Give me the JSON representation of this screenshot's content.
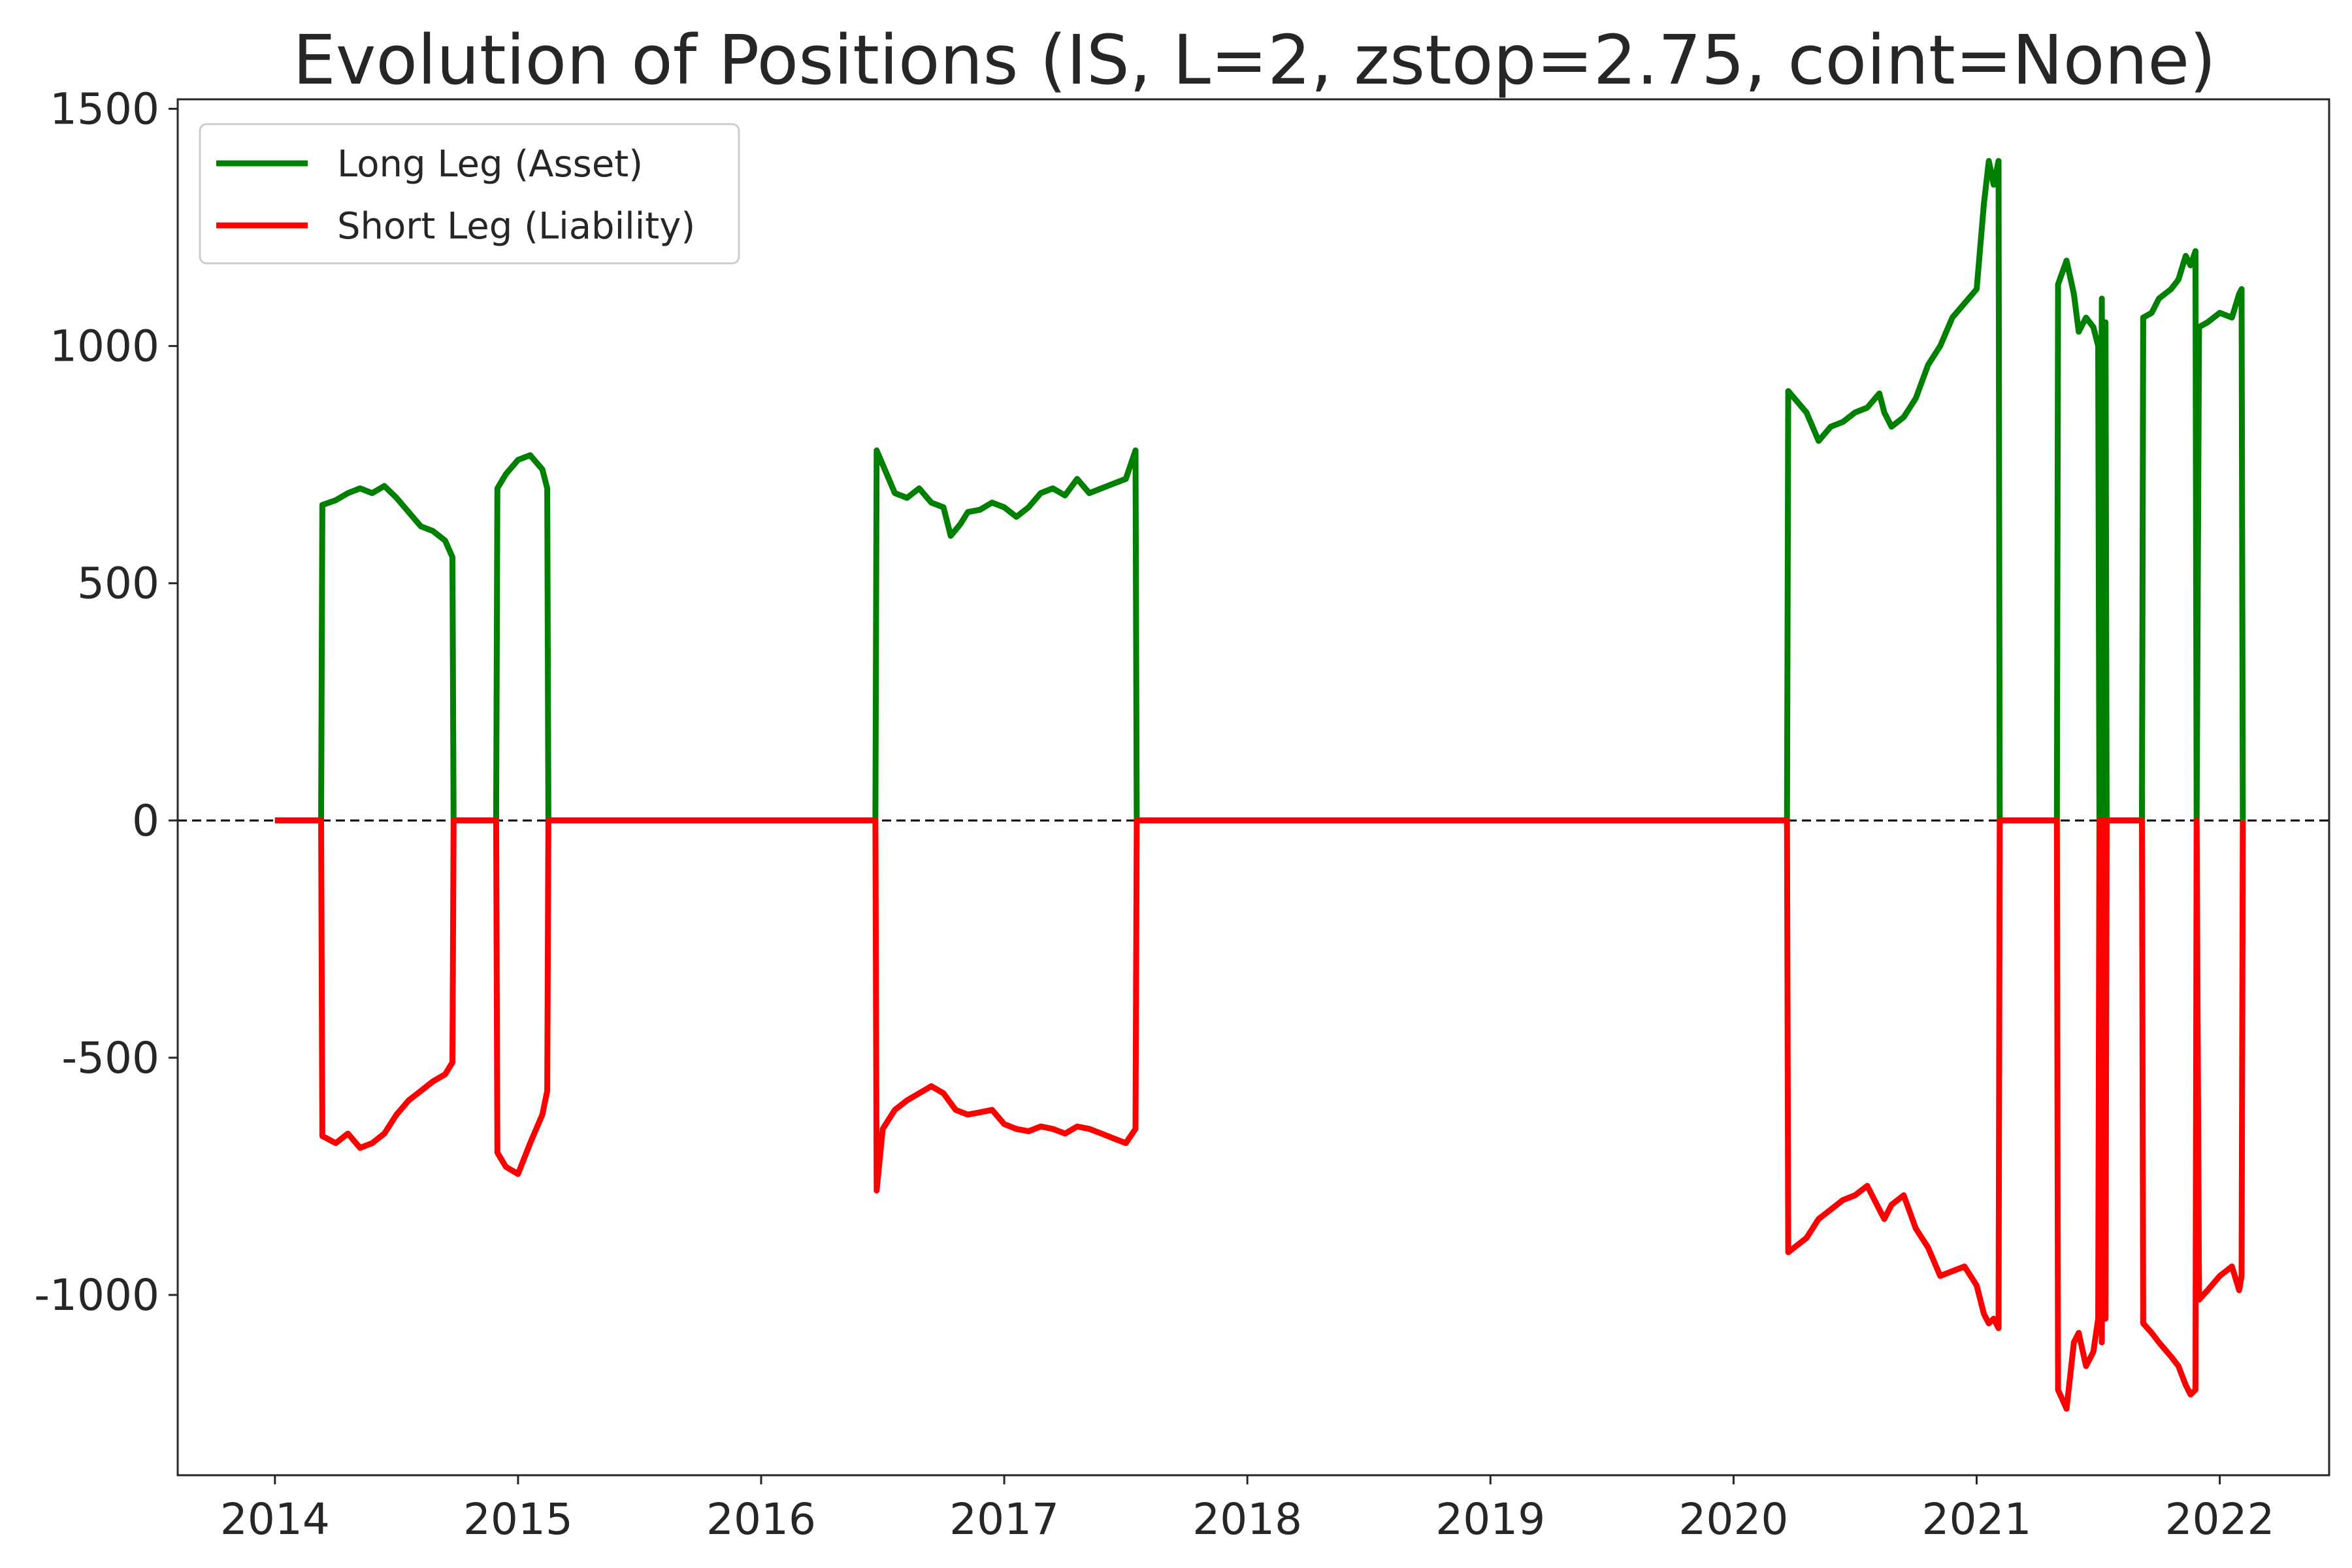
{
  "chart_data": {
    "type": "line",
    "title": "Evolution of Positions (IS, L=2, zstop=2.75, coint=None)",
    "xlabel": "",
    "ylabel": "",
    "xlim": [
      2013.6,
      2022.45
    ],
    "ylim": [
      -1380,
      1520
    ],
    "x_ticks": [
      2014,
      2015,
      2016,
      2017,
      2018,
      2019,
      2020,
      2021,
      2022
    ],
    "x_tick_labels": [
      "2014",
      "2015",
      "2016",
      "2017",
      "2018",
      "2019",
      "2020",
      "2021",
      "2022"
    ],
    "y_ticks": [
      1500,
      1000,
      500,
      0,
      -500,
      -1000
    ],
    "y_tick_labels": [
      "1500",
      "1000",
      "500",
      "0",
      "-500",
      "-1000"
    ],
    "grid": false,
    "zero_line": {
      "y": 0,
      "style": "dashed",
      "color": "#000000"
    },
    "legend": {
      "position": "top-left"
    },
    "series": [
      {
        "name": "Long Leg (Asset)",
        "color": "#008000",
        "points": [
          [
            2014.0,
            0
          ],
          [
            2014.19,
            0
          ],
          [
            2014.195,
            665
          ],
          [
            2014.25,
            675
          ],
          [
            2014.3,
            690
          ],
          [
            2014.35,
            700
          ],
          [
            2014.4,
            690
          ],
          [
            2014.45,
            705
          ],
          [
            2014.5,
            680
          ],
          [
            2014.55,
            650
          ],
          [
            2014.6,
            620
          ],
          [
            2014.65,
            610
          ],
          [
            2014.7,
            590
          ],
          [
            2014.73,
            555
          ],
          [
            2014.735,
            0
          ],
          [
            2014.91,
            0
          ],
          [
            2014.915,
            700
          ],
          [
            2014.95,
            730
          ],
          [
            2015.0,
            760
          ],
          [
            2015.05,
            770
          ],
          [
            2015.1,
            740
          ],
          [
            2015.12,
            700
          ],
          [
            2015.125,
            0
          ],
          [
            2016.47,
            0
          ],
          [
            2016.475,
            780
          ],
          [
            2016.5,
            750
          ],
          [
            2016.55,
            690
          ],
          [
            2016.6,
            680
          ],
          [
            2016.65,
            700
          ],
          [
            2016.7,
            670
          ],
          [
            2016.75,
            660
          ],
          [
            2016.78,
            600
          ],
          [
            2016.82,
            625
          ],
          [
            2016.85,
            650
          ],
          [
            2016.9,
            655
          ],
          [
            2016.95,
            670
          ],
          [
            2017.0,
            660
          ],
          [
            2017.05,
            640
          ],
          [
            2017.1,
            660
          ],
          [
            2017.15,
            690
          ],
          [
            2017.2,
            700
          ],
          [
            2017.25,
            685
          ],
          [
            2017.3,
            720
          ],
          [
            2017.35,
            690
          ],
          [
            2017.4,
            700
          ],
          [
            2017.45,
            710
          ],
          [
            2017.5,
            720
          ],
          [
            2017.54,
            780
          ],
          [
            2017.545,
            0
          ],
          [
            2020.22,
            0
          ],
          [
            2020.225,
            905
          ],
          [
            2020.3,
            860
          ],
          [
            2020.35,
            800
          ],
          [
            2020.4,
            830
          ],
          [
            2020.45,
            840
          ],
          [
            2020.5,
            860
          ],
          [
            2020.55,
            870
          ],
          [
            2020.6,
            900
          ],
          [
            2020.62,
            860
          ],
          [
            2020.65,
            830
          ],
          [
            2020.7,
            850
          ],
          [
            2020.75,
            890
          ],
          [
            2020.8,
            960
          ],
          [
            2020.85,
            1000
          ],
          [
            2020.9,
            1060
          ],
          [
            2020.95,
            1090
          ],
          [
            2021.0,
            1120
          ],
          [
            2021.03,
            1300
          ],
          [
            2021.05,
            1390
          ],
          [
            2021.07,
            1340
          ],
          [
            2021.09,
            1390
          ],
          [
            2021.095,
            0
          ],
          [
            2021.33,
            0
          ],
          [
            2021.335,
            1130
          ],
          [
            2021.37,
            1180
          ],
          [
            2021.4,
            1110
          ],
          [
            2021.42,
            1030
          ],
          [
            2021.45,
            1060
          ],
          [
            2021.48,
            1040
          ],
          [
            2021.5,
            1000
          ],
          [
            2021.505,
            0
          ],
          [
            2021.515,
            1100
          ],
          [
            2021.52,
            0
          ],
          [
            2021.53,
            1050
          ],
          [
            2021.535,
            0
          ],
          [
            2021.68,
            0
          ],
          [
            2021.685,
            1060
          ],
          [
            2021.72,
            1070
          ],
          [
            2021.75,
            1100
          ],
          [
            2021.8,
            1120
          ],
          [
            2021.83,
            1140
          ],
          [
            2021.86,
            1190
          ],
          [
            2021.88,
            1170
          ],
          [
            2021.9,
            1200
          ],
          [
            2021.905,
            0
          ],
          [
            2021.915,
            1040
          ],
          [
            2021.95,
            1050
          ],
          [
            2022.0,
            1070
          ],
          [
            2022.05,
            1060
          ],
          [
            2022.08,
            1110
          ],
          [
            2022.09,
            1120
          ],
          [
            2022.095,
            0
          ]
        ]
      },
      {
        "name": "Short Leg (Liability)",
        "color": "#ff0000",
        "points": [
          [
            2014.0,
            0
          ],
          [
            2014.19,
            0
          ],
          [
            2014.195,
            -665
          ],
          [
            2014.25,
            -680
          ],
          [
            2014.3,
            -660
          ],
          [
            2014.35,
            -690
          ],
          [
            2014.4,
            -680
          ],
          [
            2014.45,
            -660
          ],
          [
            2014.5,
            -620
          ],
          [
            2014.55,
            -590
          ],
          [
            2014.6,
            -570
          ],
          [
            2014.65,
            -550
          ],
          [
            2014.7,
            -535
          ],
          [
            2014.73,
            -510
          ],
          [
            2014.735,
            0
          ],
          [
            2014.91,
            0
          ],
          [
            2014.915,
            -700
          ],
          [
            2014.95,
            -730
          ],
          [
            2015.0,
            -745
          ],
          [
            2015.05,
            -680
          ],
          [
            2015.1,
            -620
          ],
          [
            2015.12,
            -570
          ],
          [
            2015.125,
            0
          ],
          [
            2016.47,
            0
          ],
          [
            2016.475,
            -780
          ],
          [
            2016.5,
            -650
          ],
          [
            2016.55,
            -610
          ],
          [
            2016.6,
            -590
          ],
          [
            2016.65,
            -575
          ],
          [
            2016.7,
            -560
          ],
          [
            2016.75,
            -575
          ],
          [
            2016.8,
            -610
          ],
          [
            2016.85,
            -620
          ],
          [
            2016.9,
            -615
          ],
          [
            2016.95,
            -610
          ],
          [
            2017.0,
            -640
          ],
          [
            2017.05,
            -650
          ],
          [
            2017.1,
            -655
          ],
          [
            2017.15,
            -645
          ],
          [
            2017.2,
            -650
          ],
          [
            2017.25,
            -660
          ],
          [
            2017.3,
            -645
          ],
          [
            2017.35,
            -650
          ],
          [
            2017.4,
            -660
          ],
          [
            2017.45,
            -670
          ],
          [
            2017.5,
            -680
          ],
          [
            2017.54,
            -650
          ],
          [
            2017.545,
            0
          ],
          [
            2020.22,
            0
          ],
          [
            2020.225,
            -910
          ],
          [
            2020.3,
            -880
          ],
          [
            2020.35,
            -840
          ],
          [
            2020.4,
            -820
          ],
          [
            2020.45,
            -800
          ],
          [
            2020.5,
            -790
          ],
          [
            2020.55,
            -770
          ],
          [
            2020.6,
            -820
          ],
          [
            2020.62,
            -840
          ],
          [
            2020.65,
            -810
          ],
          [
            2020.7,
            -790
          ],
          [
            2020.75,
            -860
          ],
          [
            2020.8,
            -900
          ],
          [
            2020.85,
            -960
          ],
          [
            2020.9,
            -950
          ],
          [
            2020.95,
            -940
          ],
          [
            2021.0,
            -980
          ],
          [
            2021.03,
            -1040
          ],
          [
            2021.05,
            -1060
          ],
          [
            2021.07,
            -1050
          ],
          [
            2021.09,
            -1070
          ],
          [
            2021.095,
            0
          ],
          [
            2021.33,
            0
          ],
          [
            2021.335,
            -1200
          ],
          [
            2021.37,
            -1240
          ],
          [
            2021.4,
            -1100
          ],
          [
            2021.42,
            -1080
          ],
          [
            2021.45,
            -1150
          ],
          [
            2021.48,
            -1120
          ],
          [
            2021.5,
            -1050
          ],
          [
            2021.505,
            0
          ],
          [
            2021.515,
            -1100
          ],
          [
            2021.52,
            0
          ],
          [
            2021.53,
            -1050
          ],
          [
            2021.535,
            0
          ],
          [
            2021.68,
            0
          ],
          [
            2021.685,
            -1060
          ],
          [
            2021.72,
            -1080
          ],
          [
            2021.75,
            -1100
          ],
          [
            2021.8,
            -1130
          ],
          [
            2021.83,
            -1150
          ],
          [
            2021.86,
            -1190
          ],
          [
            2021.88,
            -1210
          ],
          [
            2021.9,
            -1200
          ],
          [
            2021.905,
            0
          ],
          [
            2021.915,
            -1010
          ],
          [
            2021.95,
            -990
          ],
          [
            2022.0,
            -960
          ],
          [
            2022.05,
            -940
          ],
          [
            2022.08,
            -990
          ],
          [
            2022.09,
            -960
          ],
          [
            2022.095,
            0
          ]
        ]
      }
    ]
  }
}
